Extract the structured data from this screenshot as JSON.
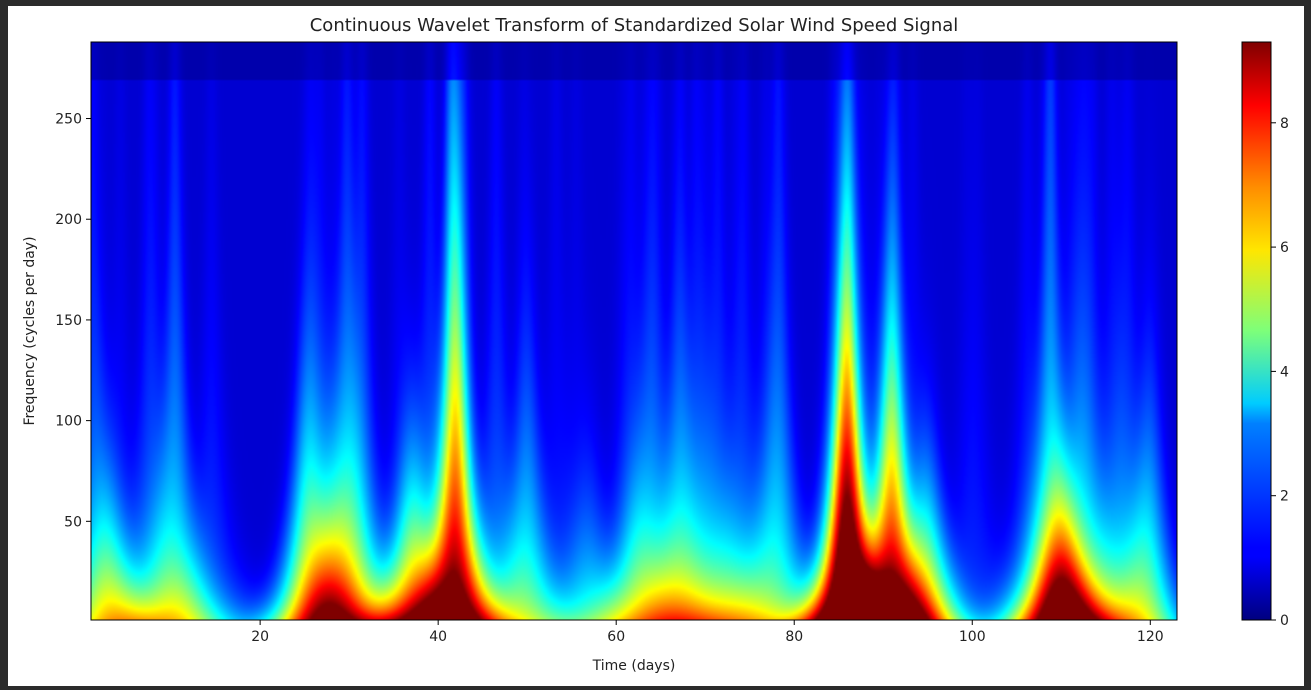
{
  "chart_data": {
    "type": "heatmap",
    "title": "Continuous Wavelet Transform of Standardized Solar Wind Speed Signal",
    "xlabel": "Time (days)",
    "ylabel": "Frequency (cycles per day)",
    "xlim": [
      1,
      123
    ],
    "ylim": [
      1,
      288
    ],
    "x_ticks": [
      20,
      40,
      60,
      80,
      100,
      120
    ],
    "y_ticks": [
      50,
      100,
      150,
      200,
      250
    ],
    "colormap": "jet",
    "colorbar": {
      "min": 0,
      "max": 9.3,
      "ticks": [
        0,
        2,
        4,
        6,
        8
      ]
    },
    "features": [
      {
        "day": 3,
        "freq_top": 60,
        "peak": 3.0
      },
      {
        "day": 11,
        "freq_top": 30,
        "peak": 1.6
      },
      {
        "day": 18,
        "freq_top": 20,
        "peak": 1.2
      },
      {
        "day": 25,
        "freq_top": 110,
        "peak": 3.0
      },
      {
        "day": 28,
        "freq_top": 90,
        "peak": 2.4
      },
      {
        "day": 37,
        "freq_top": 80,
        "peak": 4.8
      },
      {
        "day": 42,
        "freq_top": 220,
        "peak": 5.5
      },
      {
        "day": 50,
        "freq_top": 120,
        "peak": 3.0
      },
      {
        "day": 57,
        "freq_top": 70,
        "peak": 2.5
      },
      {
        "day": 62,
        "freq_top": 60,
        "peak": 2.0
      },
      {
        "day": 67,
        "freq_top": 150,
        "peak": 2.3
      },
      {
        "day": 73,
        "freq_top": 50,
        "peak": 1.6
      },
      {
        "day": 86,
        "freq_top": 190,
        "peak": 9.3
      },
      {
        "day": 91,
        "freq_top": 150,
        "peak": 7.0
      },
      {
        "day": 95,
        "freq_top": 70,
        "peak": 5.0
      },
      {
        "day": 110,
        "freq_top": 60,
        "peak": 5.0
      },
      {
        "day": 120,
        "freq_top": 110,
        "peak": 3.5
      }
    ]
  }
}
